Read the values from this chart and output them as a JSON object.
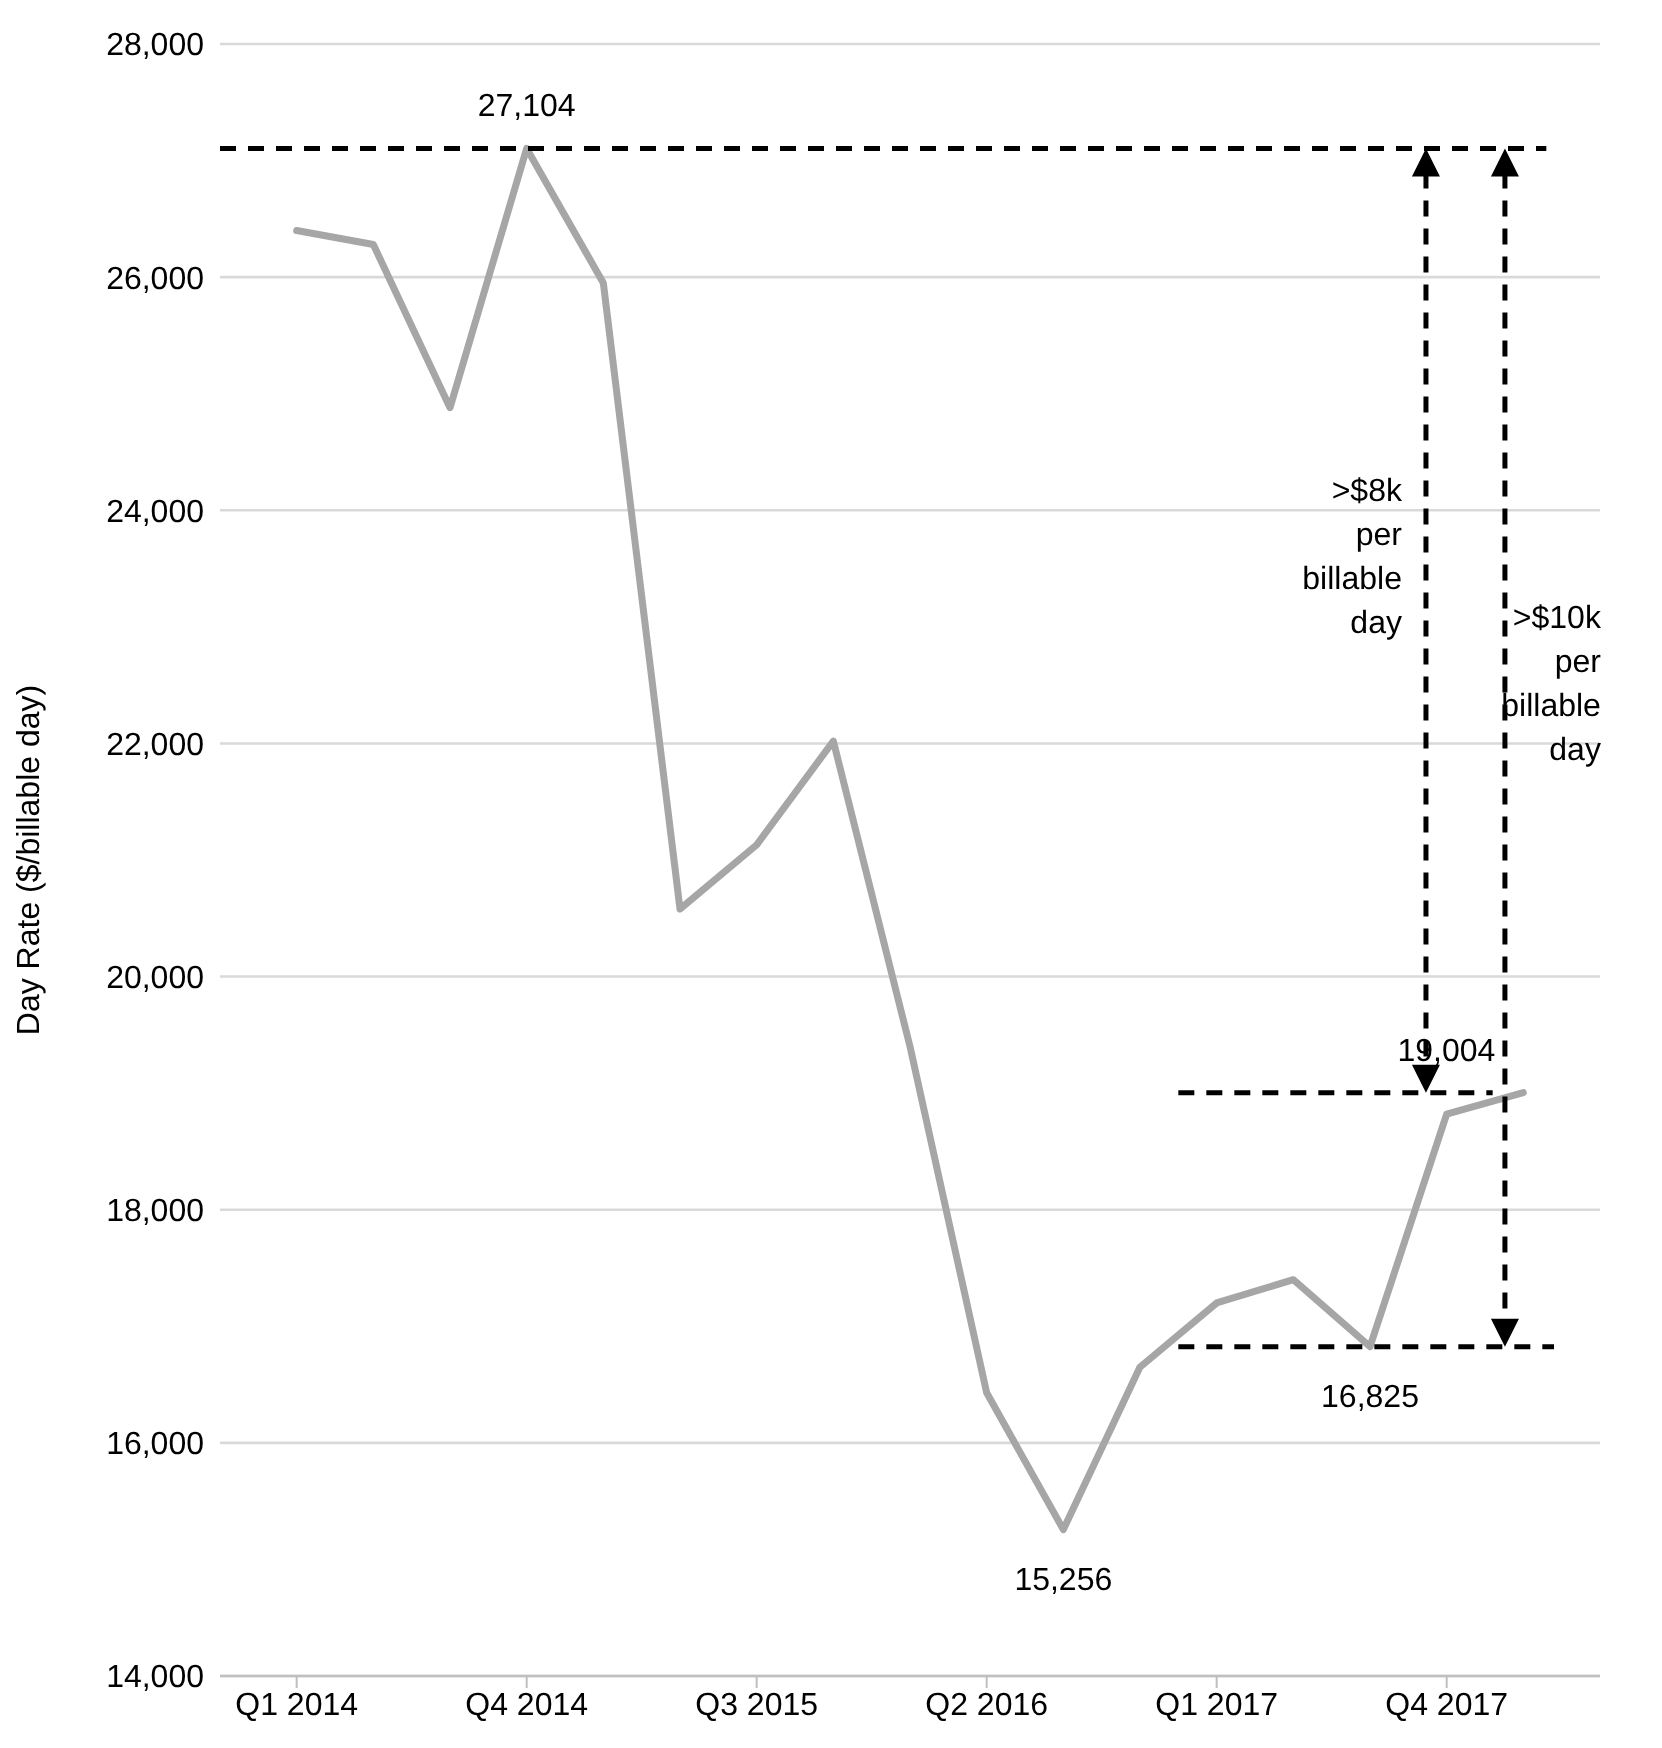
{
  "chart_data": {
    "type": "line",
    "ylabel": "Day Rate ($/billable day)",
    "categories": [
      "Q1 2014",
      null,
      null,
      "Q4 2014",
      null,
      null,
      "Q3 2015",
      null,
      null,
      "Q2 2016",
      null,
      null,
      "Q1 2017",
      null,
      null,
      "Q4 2017",
      null
    ],
    "series": [
      {
        "color": "#a6a6a6",
        "values": [
          26400,
          26280,
          24880,
          27104,
          25950,
          20580,
          21130,
          22020,
          19400,
          16430,
          15256,
          16650,
          17200,
          17400,
          16825,
          18820,
          19004
        ],
        "value_labels": [
          null,
          null,
          null,
          "27,104",
          null,
          null,
          null,
          null,
          null,
          null,
          "15,256",
          null,
          null,
          null,
          "16,825",
          null,
          "19,004"
        ]
      }
    ],
    "ylim": [
      14000,
      28000
    ],
    "yticks": [
      {
        "value": 14000,
        "label": "14,000"
      },
      {
        "value": 16000,
        "label": "16,000"
      },
      {
        "value": 18000,
        "label": "18,000"
      },
      {
        "value": 20000,
        "label": "20,000"
      },
      {
        "value": 22000,
        "label": "22,000"
      },
      {
        "value": 24000,
        "label": "24,000"
      },
      {
        "value": 26000,
        "label": "26,000"
      },
      {
        "value": 28000,
        "label": "28,000"
      }
    ],
    "grid": "y",
    "marker": "none",
    "line_style": "solid",
    "legend": false,
    "ref_lines": [
      {
        "axis": "y",
        "value": 27104,
        "line_style": "dashed",
        "color": "#000000"
      },
      {
        "axis": "y",
        "value": 19004,
        "line_style": "dashed",
        "color": "#000000"
      },
      {
        "axis": "y",
        "value": 16825,
        "line_style": "dashed",
        "color": "#000000"
      }
    ],
    "annotations": [
      ">$8k per billable day",
      ">$10k per billable day"
    ]
  }
}
